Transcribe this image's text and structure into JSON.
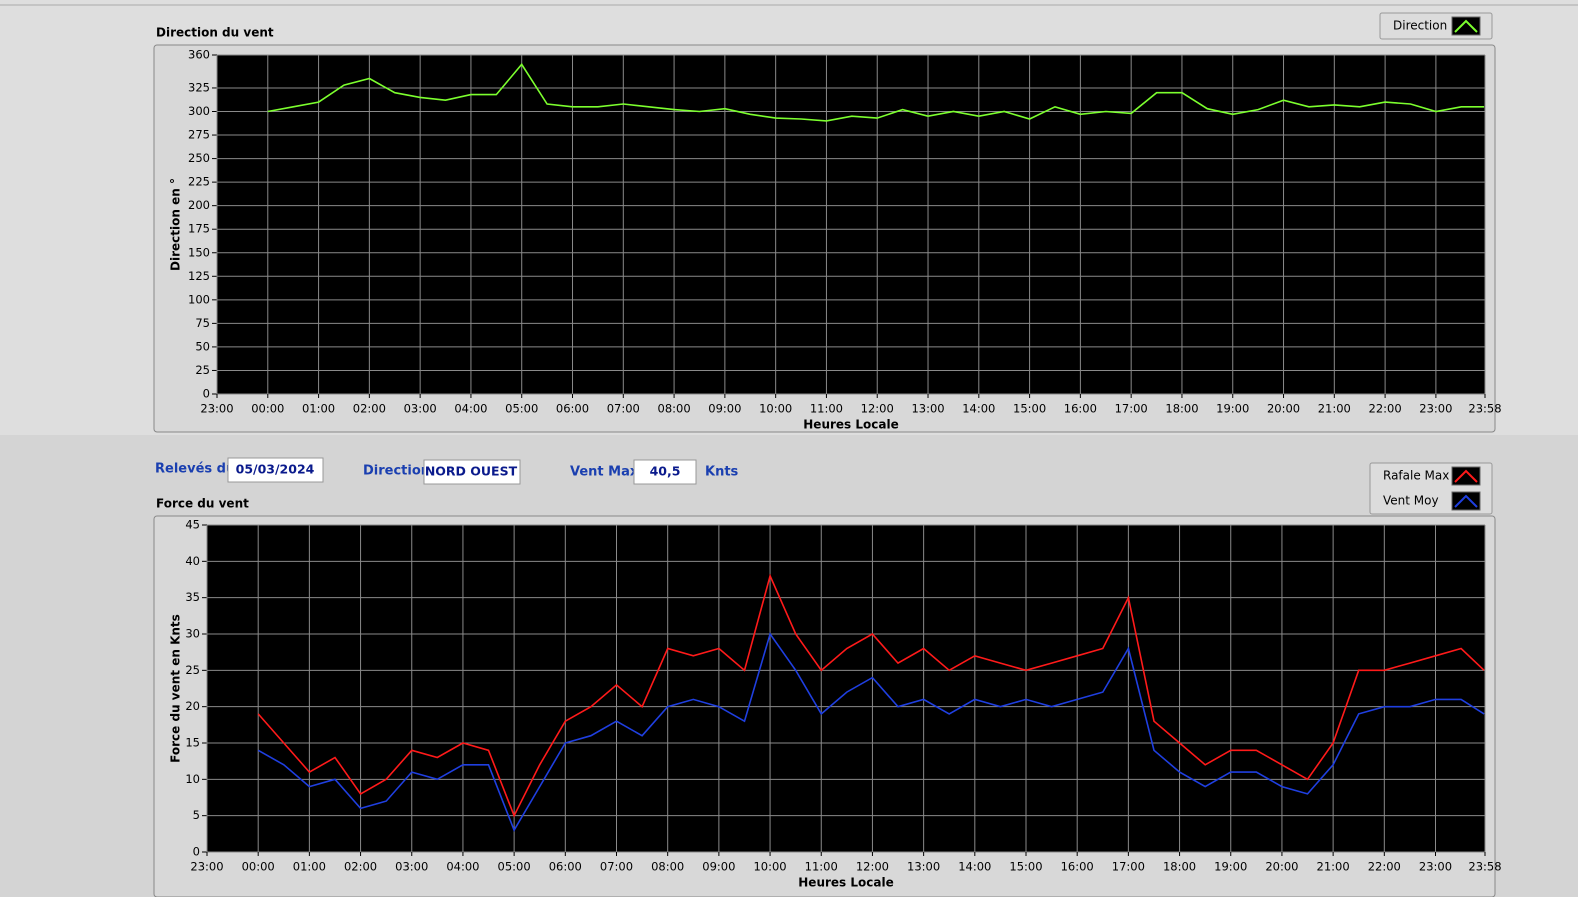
{
  "chart_data": [
    {
      "type": "line",
      "title": "Direction du vent",
      "ylabel": "Direction en °",
      "xlabel": "Heures Locale",
      "grid": true,
      "x": [
        0,
        0.5,
        1,
        1.5,
        2,
        2.5,
        3,
        3.5,
        4,
        4.5,
        5,
        5.5,
        6,
        6.5,
        7,
        7.5,
        8,
        8.5,
        9,
        9.5,
        10,
        10.5,
        11,
        11.5,
        12,
        12.5,
        13,
        13.5,
        14,
        14.5,
        15,
        15.5,
        16,
        16.5,
        17,
        17.5,
        18,
        18.5,
        19,
        19.5,
        20,
        20.5,
        21,
        21.5,
        22,
        22.5,
        23,
        23.5,
        23.95
      ],
      "series": [
        {
          "name": "Direction",
          "color": "#7cff2e",
          "values": [
            300,
            305,
            310,
            328,
            335,
            320,
            315,
            312,
            318,
            318,
            350,
            308,
            305,
            305,
            308,
            305,
            302,
            300,
            303,
            297,
            293,
            292,
            290,
            295,
            293,
            302,
            295,
            300,
            295,
            300,
            292,
            305,
            297,
            300,
            298,
            320,
            320,
            303,
            297,
            302,
            312,
            305,
            307,
            305,
            310,
            308,
            300,
            305,
            305
          ]
        }
      ],
      "xlim": [
        -1,
        23.967
      ],
      "xticks": [
        {
          "value": -1,
          "label": "23:00"
        },
        {
          "value": 0,
          "label": "00:00"
        },
        {
          "value": 1,
          "label": "01:00"
        },
        {
          "value": 2,
          "label": "02:00"
        },
        {
          "value": 3,
          "label": "03:00"
        },
        {
          "value": 4,
          "label": "04:00"
        },
        {
          "value": 5,
          "label": "05:00"
        },
        {
          "value": 6,
          "label": "06:00"
        },
        {
          "value": 7,
          "label": "07:00"
        },
        {
          "value": 8,
          "label": "08:00"
        },
        {
          "value": 9,
          "label": "09:00"
        },
        {
          "value": 10,
          "label": "10:00"
        },
        {
          "value": 11,
          "label": "11:00"
        },
        {
          "value": 12,
          "label": "12:00"
        },
        {
          "value": 13,
          "label": "13:00"
        },
        {
          "value": 14,
          "label": "14:00"
        },
        {
          "value": 15,
          "label": "15:00"
        },
        {
          "value": 16,
          "label": "16:00"
        },
        {
          "value": 17,
          "label": "17:00"
        },
        {
          "value": 18,
          "label": "18:00"
        },
        {
          "value": 19,
          "label": "19:00"
        },
        {
          "value": 20,
          "label": "20:00"
        },
        {
          "value": 21,
          "label": "21:00"
        },
        {
          "value": 22,
          "label": "22:00"
        },
        {
          "value": 23,
          "label": "23:00"
        },
        {
          "value": 23.967,
          "label": "23:58"
        }
      ],
      "ylim": [
        0,
        360
      ],
      "yticks": [
        0,
        25,
        50,
        75,
        100,
        125,
        150,
        175,
        200,
        225,
        250,
        275,
        300,
        325,
        360
      ]
    },
    {
      "type": "line",
      "title": "Force du vent",
      "ylabel": "Force du vent en Knts",
      "xlabel": "Heures Locale",
      "grid": true,
      "x": [
        0,
        0.5,
        1,
        1.5,
        2,
        2.5,
        3,
        3.5,
        4,
        4.5,
        5,
        5.5,
        6,
        6.5,
        7,
        7.5,
        8,
        8.5,
        9,
        9.5,
        10,
        10.5,
        11,
        11.5,
        12,
        12.5,
        13,
        13.5,
        14,
        14.5,
        15,
        15.5,
        16,
        16.5,
        17,
        17.5,
        18,
        18.5,
        19,
        19.5,
        20,
        20.5,
        21,
        21.5,
        22,
        22.5,
        23,
        23.5,
        23.95
      ],
      "series": [
        {
          "name": "Rafale Max",
          "color": "#ff1a1a",
          "values": [
            19,
            15,
            11,
            13,
            8,
            10,
            14,
            13,
            15,
            14,
            5,
            12,
            18,
            20,
            23,
            20,
            28,
            27,
            28,
            25,
            38,
            30,
            25,
            28,
            30,
            26,
            28,
            25,
            27,
            26,
            25,
            26,
            27,
            28,
            35,
            18,
            15,
            12,
            14,
            14,
            12,
            10,
            15,
            25,
            25,
            26,
            27,
            28,
            25
          ]
        },
        {
          "name": "Vent Moy",
          "color": "#1f3fe0",
          "values": [
            14,
            12,
            9,
            10,
            6,
            7,
            11,
            10,
            12,
            12,
            3,
            9,
            15,
            16,
            18,
            16,
            20,
            21,
            20,
            18,
            30,
            25,
            19,
            22,
            24,
            20,
            21,
            19,
            21,
            20,
            21,
            20,
            21,
            22,
            28,
            14,
            11,
            9,
            11,
            11,
            9,
            8,
            12,
            19,
            20,
            20,
            21,
            21,
            19
          ]
        }
      ],
      "xlim": [
        -1,
        23.967
      ],
      "xticks": [
        {
          "value": -1,
          "label": "23:00"
        },
        {
          "value": 0,
          "label": "00:00"
        },
        {
          "value": 1,
          "label": "01:00"
        },
        {
          "value": 2,
          "label": "02:00"
        },
        {
          "value": 3,
          "label": "03:00"
        },
        {
          "value": 4,
          "label": "04:00"
        },
        {
          "value": 5,
          "label": "05:00"
        },
        {
          "value": 6,
          "label": "06:00"
        },
        {
          "value": 7,
          "label": "07:00"
        },
        {
          "value": 8,
          "label": "08:00"
        },
        {
          "value": 9,
          "label": "09:00"
        },
        {
          "value": 10,
          "label": "10:00"
        },
        {
          "value": 11,
          "label": "11:00"
        },
        {
          "value": 12,
          "label": "12:00"
        },
        {
          "value": 13,
          "label": "13:00"
        },
        {
          "value": 14,
          "label": "14:00"
        },
        {
          "value": 15,
          "label": "15:00"
        },
        {
          "value": 16,
          "label": "16:00"
        },
        {
          "value": 17,
          "label": "17:00"
        },
        {
          "value": 18,
          "label": "18:00"
        },
        {
          "value": 19,
          "label": "19:00"
        },
        {
          "value": 20,
          "label": "20:00"
        },
        {
          "value": 21,
          "label": "21:00"
        },
        {
          "value": 22,
          "label": "22:00"
        },
        {
          "value": 23,
          "label": "23:00"
        },
        {
          "value": 23.967,
          "label": "23:58"
        }
      ],
      "ylim": [
        0,
        45
      ],
      "yticks": [
        0,
        5,
        10,
        15,
        20,
        25,
        30,
        35,
        40,
        45
      ]
    }
  ],
  "controls": {
    "date_label": "Relevés du",
    "date": "05/03/2024",
    "direction_label": "Direction",
    "direction": "NORD OUEST",
    "vent_max_label": "Vent Max",
    "vent_max": "40,5",
    "unit": "Knts"
  }
}
